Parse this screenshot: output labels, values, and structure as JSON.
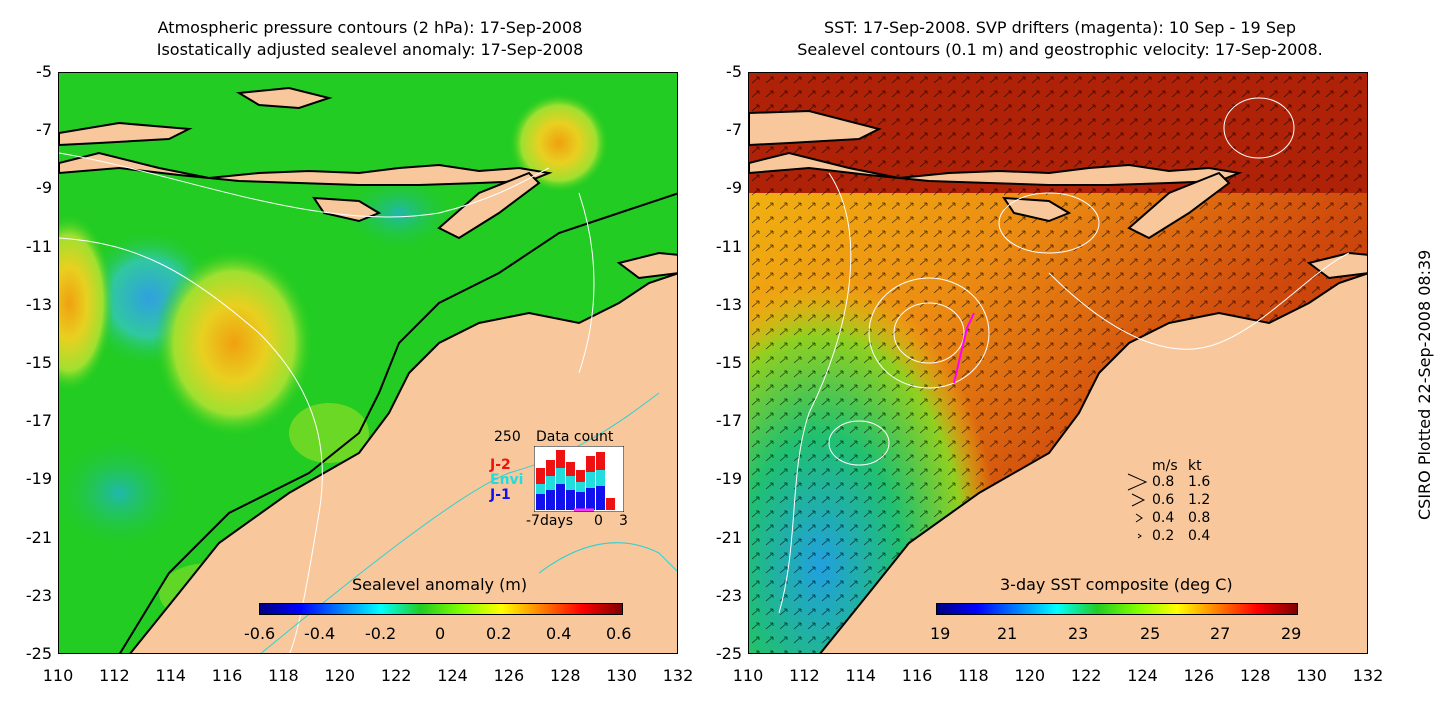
{
  "left_panel": {
    "title_line1": "Atmospheric pressure contours (2 hPa): 17-Sep-2008",
    "title_line2": "Isostatically adjusted sealevel anomaly: 17-Sep-2008",
    "colorbar_label": "Sealevel anomaly (m)",
    "colorbar_ticks": [
      "-0.6",
      "-0.4",
      "-0.2",
      "0",
      "0.2",
      "0.4",
      "0.6"
    ],
    "inset": {
      "title": "Data count",
      "ymax_label": "250",
      "legend": [
        {
          "label": "J-2",
          "color": "#ee1111"
        },
        {
          "label": "Envi",
          "color": "#22dddd"
        },
        {
          "label": "J-1",
          "color": "#1111ee"
        }
      ],
      "xlabel_left": "-7days",
      "xlabel_mid": "0",
      "xlabel_right": "3"
    }
  },
  "right_panel": {
    "title_line1": "SST: 17-Sep-2008. SVP drifters (magenta): 10 Sep - 19 Sep",
    "title_line2": "Sealevel contours (0.1 m) and geostrophic velocity: 17-Sep-2008.",
    "colorbar_label": "3-day SST composite (deg C)",
    "colorbar_ticks": [
      "19",
      "21",
      "23",
      "25",
      "27",
      "29"
    ],
    "velocity_legend": {
      "header_ms": "m/s",
      "header_kt": "kt",
      "rows": [
        {
          "ms": "0.8",
          "kt": "1.6"
        },
        {
          "ms": "0.6",
          "kt": "1.2"
        },
        {
          "ms": "0.4",
          "kt": "0.8"
        },
        {
          "ms": "0.2",
          "kt": "0.4"
        }
      ]
    }
  },
  "y_ticks": [
    "-5",
    "-7",
    "-9",
    "-11",
    "-13",
    "-15",
    "-17",
    "-19",
    "-21",
    "-23",
    "-25"
  ],
  "x_ticks": [
    "110",
    "112",
    "114",
    "116",
    "118",
    "120",
    "122",
    "124",
    "126",
    "128",
    "130",
    "132"
  ],
  "credit": "CSIRO Plotted 22-Sep-2008 08:39",
  "colors": {
    "land": "#f8c89c",
    "sla_ocean": "#22cc22",
    "sst_warm": "#b82a0a",
    "sst_mid": "#e86b10",
    "sst_cool": "#f4c010"
  }
}
